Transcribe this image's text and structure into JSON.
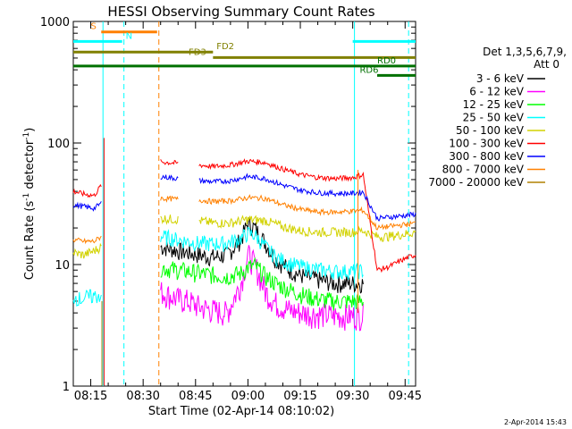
{
  "chart_data": {
    "type": "line",
    "title": "HESSI Observing Summary Count Rates",
    "xlabel": "Start Time (02-Apr-14 08:10:02)",
    "ylabel_main": "Count Rate (s",
    "ylabel_sup1": "-1",
    "ylabel_mid": " detector",
    "ylabel_sup2": "-1",
    "ylabel_end": ")",
    "y_scale": "log",
    "ylim": [
      1,
      1000
    ],
    "xlim_minutes": [
      0,
      98
    ],
    "xticks": [
      {
        "label": "08:15",
        "min": 5
      },
      {
        "label": "08:30",
        "min": 20
      },
      {
        "label": "08:45",
        "min": 35
      },
      {
        "label": "09:00",
        "min": 50
      },
      {
        "label": "09:15",
        "min": 65
      },
      {
        "label": "09:30",
        "min": 80
      },
      {
        "label": "09:45",
        "min": 95
      }
    ],
    "yticks": [
      {
        "label": "1",
        "v": 1
      },
      {
        "label": "10",
        "v": 10
      },
      {
        "label": "100",
        "v": 100
      },
      {
        "label": "1000",
        "v": 1000
      }
    ],
    "legend_header": [
      "Det 1,3,5,6,7,9,",
      "Att 0"
    ],
    "series": [
      {
        "name": "3 - 6 keV",
        "color": "#000000",
        "x": [
          25,
          28,
          30,
          33,
          36,
          40,
          44,
          48,
          50,
          52,
          55,
          58,
          62,
          66,
          70,
          75,
          80,
          83
        ],
        "y": [
          14,
          13.5,
          13,
          12.5,
          12,
          11.5,
          12,
          16,
          22,
          20,
          15,
          11,
          9,
          8,
          7.5,
          7,
          7,
          7
        ]
      },
      {
        "name": "6 - 12 keV",
        "color": "#ff00ff",
        "x": [
          25,
          28,
          30,
          33,
          36,
          40,
          44,
          48,
          50,
          52,
          55,
          58,
          62,
          66,
          70,
          75,
          80,
          83
        ],
        "y": [
          6,
          5.5,
          5.2,
          5,
          4.5,
          4.2,
          4,
          7,
          12,
          10,
          6,
          4.8,
          4.2,
          4,
          3.9,
          3.8,
          3.8,
          3.8
        ]
      },
      {
        "name": "12 - 25 keV",
        "color": "#00ff00",
        "x": [
          25,
          28,
          30,
          33,
          36,
          40,
          44,
          48,
          50,
          52,
          55,
          58,
          62,
          66,
          70,
          75,
          80,
          83
        ],
        "y": [
          9.5,
          9.2,
          9,
          8.8,
          8.5,
          8.2,
          8,
          8.5,
          9.5,
          9.8,
          8,
          7,
          6.2,
          5.6,
          5.2,
          5,
          5,
          5
        ]
      },
      {
        "name": "25 - 50 keV",
        "color": "#00ffff",
        "x": [
          25,
          28,
          30,
          33,
          36,
          40,
          44,
          48,
          50,
          52,
          55,
          58,
          62,
          66,
          70,
          75,
          80,
          83
        ],
        "y": [
          17,
          16.5,
          16,
          15.5,
          15,
          14.8,
          15,
          16.5,
          18,
          17.5,
          14,
          11.5,
          10.2,
          9.5,
          9.1,
          8.8,
          8.8,
          8.9
        ]
      },
      {
        "name": "50 - 100 keV",
        "color": "#d2d200",
        "x": [
          0,
          3,
          6,
          8,
          25,
          30,
          36,
          40,
          45,
          50,
          55,
          60,
          65,
          70,
          75,
          80,
          83,
          87,
          90,
          93,
          96,
          98
        ],
        "y": [
          12.5,
          12,
          13,
          14,
          24,
          23.5,
          23,
          22,
          22,
          23.5,
          23,
          20.5,
          19,
          18.5,
          18.5,
          18.5,
          19,
          17,
          17,
          17.5,
          18,
          18.5
        ]
      },
      {
        "name": "100 - 300 keV",
        "color": "#ff0000",
        "x": [
          0,
          3,
          6,
          8,
          25,
          30,
          36,
          40,
          45,
          50,
          55,
          60,
          65,
          70,
          75,
          80,
          83,
          87,
          90,
          93,
          96,
          98
        ],
        "y": [
          40,
          38,
          37,
          45,
          70,
          68,
          66,
          64,
          66,
          71,
          69,
          61,
          55,
          52,
          51,
          52,
          55,
          9,
          9.5,
          10.5,
          11.5,
          12
        ]
      },
      {
        "name": "300 - 800 keV",
        "color": "#0000ff",
        "x": [
          0,
          3,
          6,
          8,
          25,
          30,
          36,
          40,
          45,
          50,
          55,
          60,
          65,
          70,
          75,
          80,
          83,
          87,
          90,
          93,
          96,
          98
        ],
        "y": [
          31,
          30,
          29,
          32,
          53,
          51,
          49,
          48,
          49,
          53,
          51,
          45,
          41,
          39,
          38.5,
          38.5,
          39.5,
          24,
          24.5,
          25,
          25.5,
          26
        ]
      },
      {
        "name": "800 - 7000 keV",
        "color": "#ff8000",
        "x": [
          0,
          3,
          6,
          8,
          25,
          30,
          36,
          40,
          45,
          50,
          55,
          60,
          65,
          70,
          75,
          80,
          83,
          87,
          90,
          93,
          96,
          98
        ],
        "y": [
          16,
          15.5,
          15.5,
          17,
          35,
          34.5,
          34,
          33,
          33.5,
          35.5,
          35,
          31,
          28.5,
          27,
          27,
          27.5,
          28,
          20,
          20.5,
          21,
          21.5,
          22
        ]
      },
      {
        "name": "7000 - 20000 keV",
        "color": "#b08000",
        "x": [],
        "y": []
      }
    ],
    "early_cyan": {
      "x": [
        0,
        2,
        4,
        6,
        8
      ],
      "y": [
        5.5,
        5.2,
        5.4,
        5.5,
        5.6
      ]
    },
    "flags": [
      {
        "label": "S",
        "color": "#ff8000",
        "x0": 8,
        "x1": 24,
        "y": 820,
        "label_min": 5
      },
      {
        "label": "N",
        "color": "#00ffff",
        "x0": 0,
        "x1": 14,
        "y": 685,
        "label_min": 15
      },
      {
        "label": "N",
        "color": "#00ffff",
        "x0": 80,
        "x1": 98,
        "y": 685,
        "label_min": null
      },
      {
        "label": "FD2",
        "color": "#808000",
        "x0": 0,
        "x1": 40,
        "y": 560,
        "label_min": 41
      },
      {
        "label": "FD3",
        "color": "#808000",
        "x0": 40,
        "x1": 98,
        "y": 505,
        "label_min": 33
      },
      {
        "label": "RD0",
        "color": "#007000",
        "x0": 0,
        "x1": 98,
        "y": 430,
        "label_min": 87
      },
      {
        "label": "RD6",
        "color": "#007000",
        "x0": 87,
        "x1": 98,
        "y": 360,
        "label_min": 82
      }
    ],
    "vlines": [
      {
        "min": 8.5,
        "color": "#00ffff",
        "style": "solid"
      },
      {
        "min": 14.5,
        "color": "#00ffff",
        "style": "dashed"
      },
      {
        "min": 24.5,
        "color": "#ff8000",
        "style": "dashed"
      },
      {
        "min": 80.5,
        "color": "#00ffff",
        "style": "solid"
      },
      {
        "min": 96,
        "color": "#00ffff",
        "style": "dashed"
      }
    ],
    "timestamp": "2-Apr-2014 15:43"
  }
}
